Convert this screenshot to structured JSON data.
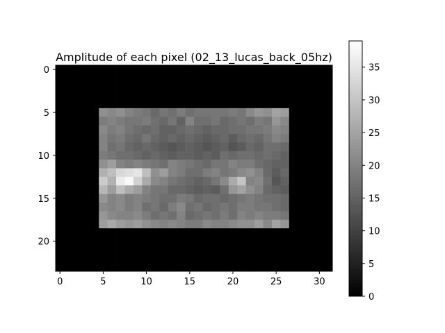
{
  "chart_data": {
    "type": "heatmap",
    "title": "Amplitude of each pixel (02_13_lucas_back_05hz)",
    "xlabel": "",
    "ylabel": "",
    "colormap": "gray",
    "grid": false,
    "x_ticks": [
      0,
      5,
      10,
      15,
      20,
      25,
      30
    ],
    "y_ticks": [
      0,
      5,
      10,
      15,
      20
    ],
    "xlim": [
      -0.5,
      31.5
    ],
    "ylim": [
      23.5,
      -0.5
    ],
    "colorbar": {
      "range": [
        0,
        39
      ],
      "ticks": [
        0,
        5,
        10,
        15,
        20,
        25,
        30,
        35
      ]
    },
    "rows": 24,
    "cols": 32,
    "region": {
      "x_start": 5,
      "y_start": 5
    },
    "region_values": [
      [
        22,
        21,
        22,
        20,
        19,
        18,
        16,
        18,
        17,
        19,
        17,
        18,
        18,
        18,
        18,
        19,
        18,
        21,
        23,
        22,
        25,
        24
      ],
      [
        19,
        20,
        19,
        18,
        18,
        19,
        17,
        16,
        18,
        15,
        20,
        17,
        17,
        18,
        16,
        17,
        18,
        17,
        19,
        18,
        23,
        21
      ],
      [
        21,
        19,
        20,
        18,
        17,
        16,
        17,
        15,
        15,
        16,
        17,
        16,
        15,
        16,
        16,
        17,
        17,
        18,
        18,
        19,
        21,
        20
      ],
      [
        20,
        18,
        19,
        17,
        16,
        18,
        16,
        15,
        16,
        15,
        16,
        15,
        14,
        15,
        16,
        14,
        16,
        17,
        16,
        18,
        20,
        19
      ],
      [
        20,
        17,
        18,
        16,
        15,
        16,
        15,
        14,
        13,
        14,
        15,
        14,
        13,
        14,
        15,
        13,
        14,
        16,
        15,
        17,
        17,
        16
      ],
      [
        19,
        18,
        17,
        17,
        16,
        15,
        16,
        15,
        14,
        15,
        15,
        14,
        15,
        14,
        17,
        16,
        17,
        17,
        16,
        17,
        16,
        15
      ],
      [
        22,
        24,
        20,
        19,
        20,
        19,
        18,
        17,
        20,
        19,
        18,
        17,
        16,
        18,
        18,
        20,
        19,
        19,
        17,
        16,
        15,
        15
      ],
      [
        27,
        29,
        33,
        34,
        35,
        29,
        22,
        24,
        20,
        19,
        17,
        17,
        19,
        20,
        18,
        19,
        21,
        22,
        20,
        16,
        14,
        16
      ],
      [
        31,
        27,
        36,
        38,
        32,
        26,
        21,
        20,
        18,
        17,
        16,
        15,
        16,
        18,
        21,
        26,
        30,
        20,
        21,
        17,
        13,
        15
      ],
      [
        28,
        24,
        29,
        26,
        24,
        20,
        18,
        18,
        16,
        16,
        15,
        14,
        15,
        14,
        17,
        23,
        25,
        22,
        20,
        16,
        15,
        14
      ],
      [
        23,
        20,
        21,
        19,
        20,
        19,
        18,
        17,
        17,
        19,
        18,
        16,
        17,
        17,
        16,
        17,
        18,
        19,
        18,
        17,
        17,
        16
      ],
      [
        21,
        20,
        21,
        19,
        20,
        17,
        18,
        16,
        19,
        21,
        17,
        18,
        16,
        17,
        18,
        17,
        19,
        19,
        18,
        18,
        17,
        16
      ],
      [
        23,
        21,
        20,
        20,
        21,
        19,
        17,
        18,
        17,
        20,
        16,
        17,
        18,
        17,
        19,
        17,
        20,
        19,
        20,
        19,
        19,
        18
      ],
      [
        24,
        26,
        24,
        23,
        24,
        22,
        21,
        20,
        21,
        20,
        19,
        19,
        21,
        20,
        20,
        21,
        22,
        22,
        24,
        21,
        25,
        23
      ]
    ]
  }
}
